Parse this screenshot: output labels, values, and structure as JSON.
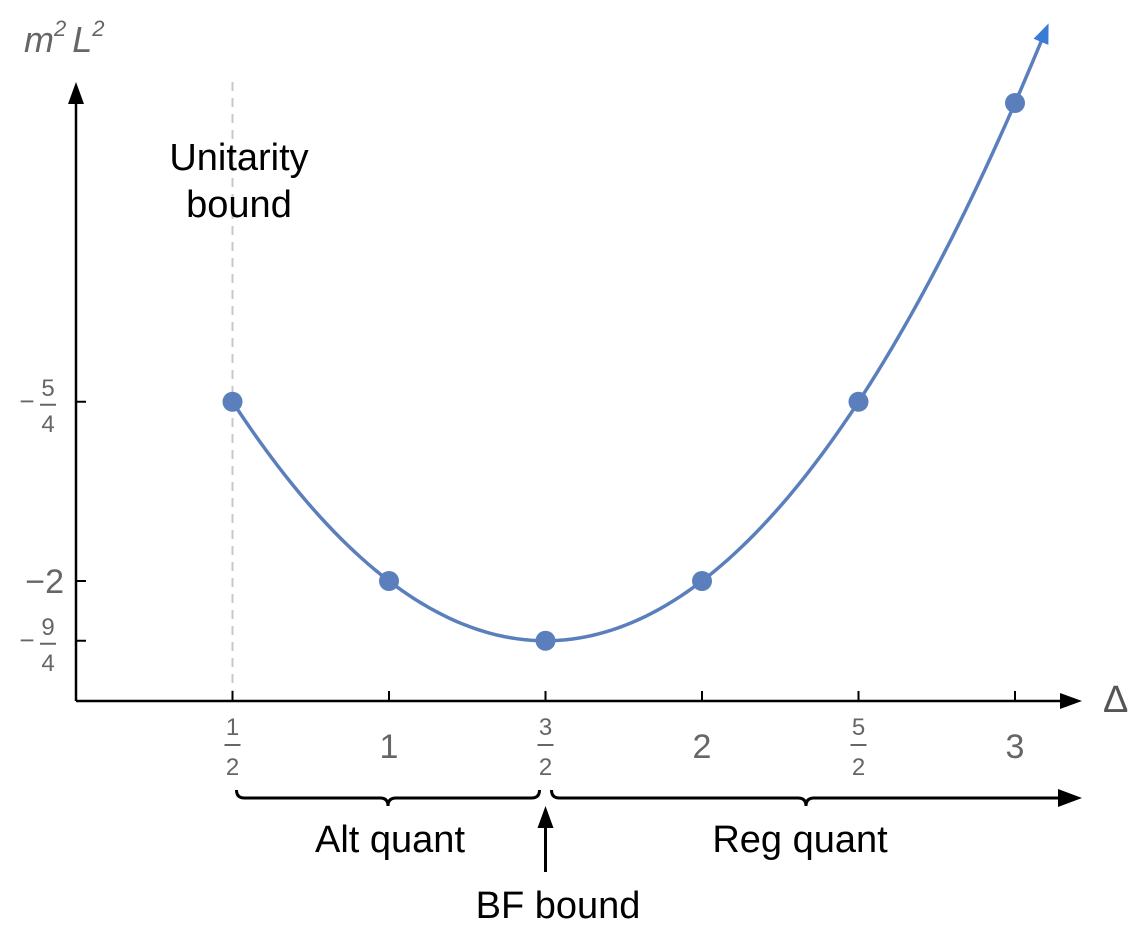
{
  "chart_data": {
    "type": "line",
    "ylabel": {
      "base1": "m",
      "sup1": "2",
      "base2": "L",
      "sup2": "2"
    },
    "xlabel": "Δ",
    "xlim": [
      0,
      3.1
    ],
    "ylim": [
      -2.5,
      1.5
    ],
    "x_ticks": [
      {
        "value": 0.5,
        "num": "1",
        "den": "2"
      },
      {
        "value": 1,
        "label": "1"
      },
      {
        "value": 1.5,
        "num": "3",
        "den": "2"
      },
      {
        "value": 2,
        "label": "2"
      },
      {
        "value": 2.5,
        "num": "5",
        "den": "2"
      },
      {
        "value": 3,
        "label": "3"
      }
    ],
    "y_ticks": [
      {
        "value": -1.25,
        "sign": "−",
        "num": "5",
        "den": "4"
      },
      {
        "value": -2,
        "label": "−2"
      },
      {
        "value": -2.25,
        "sign": "−",
        "num": "9",
        "den": "4"
      }
    ],
    "series": [
      {
        "points": [
          {
            "x": 0.5,
            "y": -1.25
          },
          {
            "x": 1,
            "y": -2
          },
          {
            "x": 1.5,
            "y": -2.25
          },
          {
            "x": 2,
            "y": -2
          },
          {
            "x": 2.5,
            "y": -1.25
          },
          {
            "x": 3,
            "y": 0
          }
        ],
        "curve_x_range": [
          0.5,
          3.1
        ],
        "color": "#5b7fbc"
      }
    ],
    "arrow_color": "#3a7bd5",
    "unitarity_line_x": 0.5,
    "annotations": {
      "unitarity_line1": "Unitarity",
      "unitarity_line2": "bound",
      "alt_quant": "Alt quant",
      "reg_quant": "Reg quant",
      "bf_bound": "BF bound"
    }
  }
}
